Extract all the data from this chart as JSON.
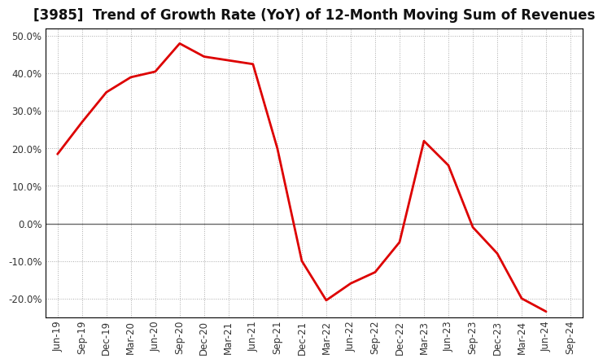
{
  "title": "[3985]  Trend of Growth Rate (YoY) of 12-Month Moving Sum of Revenues",
  "x_labels": [
    "Jun-19",
    "Sep-19",
    "Dec-19",
    "Mar-20",
    "Jun-20",
    "Sep-20",
    "Dec-20",
    "Mar-21",
    "Jun-21",
    "Sep-21",
    "Dec-21",
    "Mar-22",
    "Jun-22",
    "Sep-22",
    "Dec-22",
    "Mar-23",
    "Jun-23",
    "Sep-23",
    "Dec-23",
    "Mar-24",
    "Jun-24",
    "Sep-24"
  ],
  "y_values": [
    18.5,
    27.0,
    35.0,
    39.0,
    40.5,
    48.0,
    44.5,
    43.5,
    42.5,
    20.0,
    -10.0,
    -20.5,
    -16.0,
    -13.0,
    -5.0,
    22.0,
    15.5,
    -1.0,
    -8.0,
    -20.0,
    -23.5,
    null
  ],
  "line_color": "#dd0000",
  "line_width": 2.0,
  "background_color": "#ffffff",
  "plot_bg_color": "#ffffff",
  "grid_color": "#aaaaaa",
  "zero_line_color": "#666666",
  "ylim": [
    -25,
    52
  ],
  "yticks": [
    -20.0,
    -10.0,
    0.0,
    10.0,
    20.0,
    30.0,
    40.0,
    50.0
  ],
  "ytick_labels": [
    "-20.0%",
    "-10.0%",
    "0.0%",
    "10.0%",
    "20.0%",
    "30.0%",
    "40.0%",
    "50.0%"
  ],
  "title_fontsize": 12,
  "tick_fontsize": 8.5,
  "border_color": "#000000",
  "figsize": [
    7.2,
    4.4
  ],
  "dpi": 100
}
